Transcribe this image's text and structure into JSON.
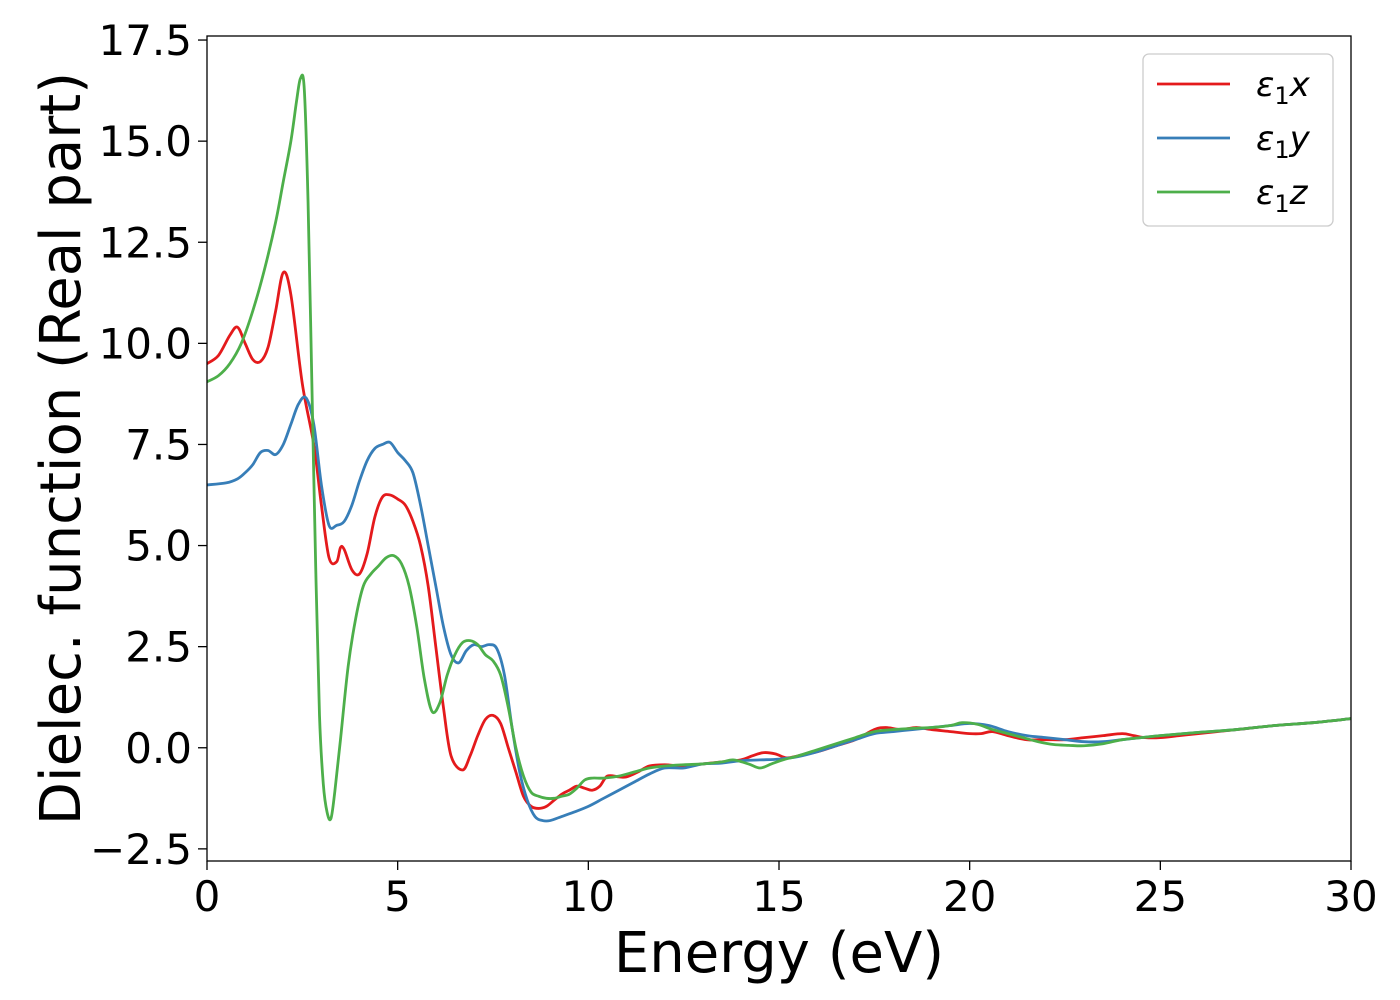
{
  "chart_data": {
    "type": "line",
    "xlabel": "Energy (eV)",
    "ylabel": "Dielec. function (Real part)",
    "xlim": [
      0,
      30
    ],
    "ylim": [
      -2.8,
      17.6
    ],
    "xticks": [
      0,
      5,
      10,
      15,
      20,
      25,
      30
    ],
    "xtick_labels": [
      "0",
      "5",
      "10",
      "15",
      "20",
      "25",
      "30"
    ],
    "yticks": [
      -2.5,
      0.0,
      2.5,
      5.0,
      7.5,
      10.0,
      12.5,
      15.0,
      17.5
    ],
    "ytick_labels": [
      "−2.5",
      "0.0",
      "2.5",
      "5.0",
      "7.5",
      "10.0",
      "12.5",
      "15.0",
      "17.5"
    ],
    "grid": false,
    "legend_position": "top-right",
    "series": [
      {
        "name": "ε₁x",
        "name_parts": {
          "symbol": "ε",
          "subscript": "1",
          "axis": "x"
        },
        "color": "#e41a1c",
        "x": [
          0,
          0.3,
          0.6,
          0.8,
          1.0,
          1.2,
          1.4,
          1.6,
          1.8,
          2.0,
          2.2,
          2.5,
          2.8,
          3.0,
          3.2,
          3.4,
          3.5,
          3.6,
          3.8,
          4.0,
          4.2,
          4.4,
          4.6,
          4.8,
          5.0,
          5.2,
          5.4,
          5.6,
          5.8,
          6.0,
          6.2,
          6.4,
          6.7,
          6.9,
          7.1,
          7.3,
          7.5,
          7.7,
          7.9,
          8.1,
          8.3,
          8.5,
          8.7,
          8.9,
          9.1,
          9.3,
          9.5,
          9.7,
          9.9,
          10.1,
          10.3,
          10.5,
          10.8,
          11.0,
          11.3,
          11.6,
          12.0,
          12.5,
          13.0,
          13.5,
          14.0,
          14.3,
          14.6,
          14.9,
          15.2,
          15.5,
          16.0,
          16.5,
          17.0,
          17.5,
          17.8,
          18.2,
          18.6,
          19.0,
          19.5,
          20.0,
          20.3,
          20.6,
          21.0,
          21.5,
          22.0,
          22.5,
          23.0,
          23.5,
          24.0,
          24.3,
          24.6,
          25.0,
          25.5,
          26.0,
          27.0,
          28.0,
          29.0,
          30.0
        ],
        "y": [
          9.5,
          9.7,
          10.2,
          10.4,
          10.0,
          9.6,
          9.55,
          9.9,
          10.8,
          11.75,
          11.2,
          9.0,
          7.5,
          6.0,
          4.7,
          4.6,
          4.95,
          4.9,
          4.4,
          4.3,
          4.8,
          5.7,
          6.2,
          6.25,
          6.15,
          6.0,
          5.6,
          5.0,
          4.0,
          2.5,
          1.0,
          -0.2,
          -0.55,
          -0.2,
          0.3,
          0.7,
          0.8,
          0.6,
          0.0,
          -0.6,
          -1.2,
          -1.45,
          -1.5,
          -1.45,
          -1.3,
          -1.15,
          -1.05,
          -0.95,
          -1.0,
          -1.05,
          -0.95,
          -0.7,
          -0.72,
          -0.72,
          -0.6,
          -0.45,
          -0.42,
          -0.45,
          -0.4,
          -0.35,
          -0.3,
          -0.2,
          -0.12,
          -0.15,
          -0.25,
          -0.2,
          -0.1,
          0.05,
          0.2,
          0.45,
          0.5,
          0.45,
          0.5,
          0.45,
          0.4,
          0.35,
          0.35,
          0.4,
          0.3,
          0.2,
          0.2,
          0.2,
          0.25,
          0.3,
          0.35,
          0.3,
          0.25,
          0.25,
          0.3,
          0.35,
          0.45,
          0.55,
          0.62,
          0.72
        ]
      },
      {
        "name": "ε₁y",
        "name_parts": {
          "symbol": "ε",
          "subscript": "1",
          "axis": "y"
        },
        "color": "#377eb8",
        "x": [
          0,
          0.5,
          0.8,
          1.0,
          1.2,
          1.4,
          1.6,
          1.8,
          2.0,
          2.2,
          2.4,
          2.6,
          2.8,
          3.0,
          3.2,
          3.4,
          3.6,
          3.8,
          4.0,
          4.2,
          4.4,
          4.6,
          4.8,
          5.0,
          5.2,
          5.4,
          5.6,
          5.8,
          6.0,
          6.2,
          6.4,
          6.6,
          6.8,
          7.0,
          7.2,
          7.4,
          7.6,
          7.8,
          8.0,
          8.2,
          8.4,
          8.6,
          8.8,
          9.0,
          9.3,
          9.6,
          10.0,
          10.4,
          10.8,
          11.2,
          11.6,
          12.0,
          12.5,
          13.0,
          13.5,
          14.0,
          14.5,
          15.0,
          15.5,
          16.0,
          16.5,
          17.0,
          17.5,
          18.0,
          18.5,
          19.0,
          19.5,
          20.0,
          20.5,
          21.0,
          21.5,
          22.0,
          22.5,
          23.0,
          23.5,
          24.0,
          24.5,
          25.0,
          26.0,
          27.0,
          28.0,
          29.0,
          30.0
        ],
        "y": [
          6.5,
          6.55,
          6.65,
          6.8,
          7.0,
          7.3,
          7.35,
          7.25,
          7.5,
          8.0,
          8.5,
          8.65,
          8.0,
          6.5,
          5.5,
          5.5,
          5.6,
          6.0,
          6.6,
          7.1,
          7.4,
          7.5,
          7.55,
          7.3,
          7.1,
          6.8,
          6.0,
          5.0,
          4.0,
          3.0,
          2.3,
          2.1,
          2.4,
          2.55,
          2.5,
          2.55,
          2.45,
          1.8,
          0.5,
          -0.6,
          -1.3,
          -1.7,
          -1.8,
          -1.8,
          -1.7,
          -1.6,
          -1.45,
          -1.25,
          -1.05,
          -0.85,
          -0.65,
          -0.5,
          -0.5,
          -0.4,
          -0.38,
          -0.32,
          -0.3,
          -0.28,
          -0.22,
          -0.1,
          0.05,
          0.2,
          0.35,
          0.4,
          0.45,
          0.5,
          0.55,
          0.6,
          0.55,
          0.4,
          0.3,
          0.25,
          0.2,
          0.15,
          0.15,
          0.2,
          0.25,
          0.3,
          0.38,
          0.45,
          0.55,
          0.62,
          0.72
        ]
      },
      {
        "name": "ε₁z",
        "name_parts": {
          "symbol": "ε",
          "subscript": "1",
          "axis": "z"
        },
        "color": "#4daf4a",
        "x": [
          0,
          0.3,
          0.6,
          0.9,
          1.2,
          1.5,
          1.8,
          2.0,
          2.2,
          2.35,
          2.45,
          2.55,
          2.65,
          2.75,
          2.85,
          2.95,
          3.05,
          3.15,
          3.25,
          3.35,
          3.5,
          3.7,
          3.9,
          4.1,
          4.3,
          4.5,
          4.7,
          4.9,
          5.1,
          5.3,
          5.5,
          5.7,
          5.9,
          6.1,
          6.3,
          6.5,
          6.7,
          6.9,
          7.1,
          7.3,
          7.5,
          7.7,
          7.9,
          8.1,
          8.3,
          8.5,
          8.7,
          8.9,
          9.1,
          9.3,
          9.5,
          9.7,
          9.9,
          10.1,
          10.4,
          10.8,
          11.2,
          11.6,
          12.0,
          12.5,
          13.0,
          13.5,
          13.8,
          14.2,
          14.5,
          14.8,
          15.1,
          15.5,
          16.0,
          16.5,
          17.0,
          17.5,
          18.0,
          18.5,
          19.0,
          19.5,
          19.8,
          20.2,
          20.6,
          21.0,
          21.4,
          21.8,
          22.2,
          22.6,
          23.0,
          23.5,
          24.0,
          24.5,
          25.0,
          26.0,
          27.0,
          28.0,
          29.0,
          30.0
        ],
        "y": [
          9.05,
          9.2,
          9.5,
          10.0,
          10.8,
          11.8,
          13.0,
          14.0,
          15.0,
          16.0,
          16.55,
          16.3,
          13.5,
          9.0,
          4.5,
          0.8,
          -0.9,
          -1.6,
          -1.75,
          -1.1,
          0.2,
          2.0,
          3.2,
          4.0,
          4.3,
          4.5,
          4.7,
          4.75,
          4.55,
          4.0,
          3.0,
          1.7,
          0.9,
          1.1,
          1.8,
          2.3,
          2.6,
          2.65,
          2.55,
          2.3,
          2.15,
          1.8,
          1.0,
          0.0,
          -0.7,
          -1.1,
          -1.2,
          -1.25,
          -1.25,
          -1.2,
          -1.15,
          -1.0,
          -0.8,
          -0.75,
          -0.75,
          -0.7,
          -0.6,
          -0.5,
          -0.45,
          -0.42,
          -0.4,
          -0.35,
          -0.3,
          -0.4,
          -0.5,
          -0.4,
          -0.3,
          -0.2,
          -0.05,
          0.1,
          0.25,
          0.4,
          0.45,
          0.48,
          0.5,
          0.55,
          0.62,
          0.58,
          0.45,
          0.35,
          0.25,
          0.15,
          0.08,
          0.06,
          0.05,
          0.1,
          0.2,
          0.25,
          0.3,
          0.38,
          0.45,
          0.55,
          0.62,
          0.72
        ]
      }
    ]
  }
}
